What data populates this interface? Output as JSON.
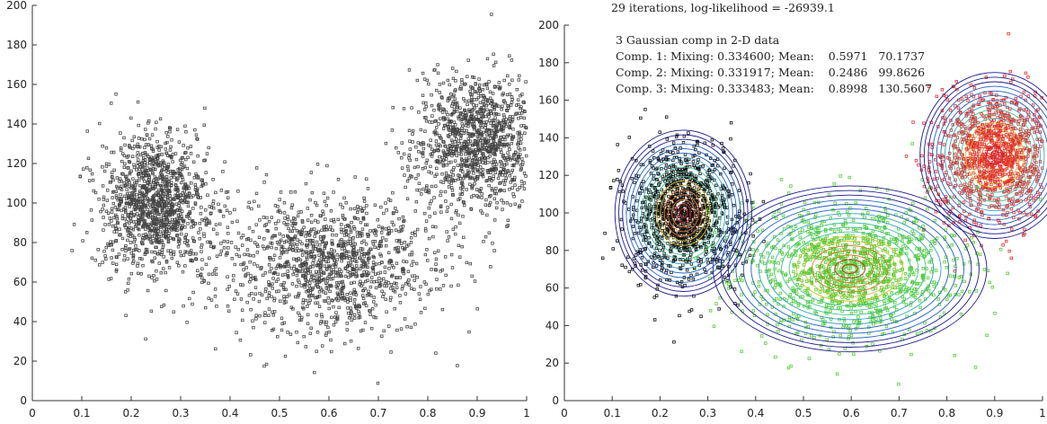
{
  "chart_data": [
    {
      "type": "scatter",
      "title": "",
      "xlabel": "",
      "ylabel": "",
      "xlim": [
        0,
        1
      ],
      "ylim": [
        0,
        200
      ],
      "x_ticks": [
        "0",
        "0.1",
        "0.2",
        "0.3",
        "0.4",
        "0.5",
        "0.6",
        "0.7",
        "0.8",
        "0.9",
        "1"
      ],
      "y_ticks": [
        "0",
        "20",
        "40",
        "60",
        "80",
        "100",
        "120",
        "140",
        "160",
        "180",
        "200"
      ],
      "grid": false,
      "marker": "square",
      "point_color": "#444444",
      "clusters": [
        {
          "mean": [
            0.2486,
            99.8626
          ],
          "sd": [
            0.055,
            17
          ],
          "weight": 0.331917
        },
        {
          "mean": [
            0.5971,
            70.1737
          ],
          "sd": [
            0.11,
            17
          ],
          "weight": 0.3346
        },
        {
          "mean": [
            0.8998,
            130.5607
          ],
          "sd": [
            0.06,
            17
          ],
          "weight": 0.333483
        }
      ]
    },
    {
      "type": "scatter",
      "title": "29 iterations, log-likelihood = -26939.1",
      "xlabel": "",
      "ylabel": "",
      "xlim": [
        0,
        1
      ],
      "ylim": [
        0,
        200
      ],
      "x_ticks": [
        "0",
        "0.1",
        "0.2",
        "0.3",
        "0.4",
        "0.5",
        "0.6",
        "0.7",
        "0.8",
        "0.9",
        "1"
      ],
      "y_ticks": [
        "0",
        "20",
        "40",
        "60",
        "80",
        "100",
        "120",
        "140",
        "160",
        "180",
        "200"
      ],
      "grid": false,
      "overlay": "gaussian mixture density contours",
      "annotations": [
        "3 Gaussian comp in 2-D data",
        "Comp. 1: Mixing: 0.334600; Mean:    0.5971   70.1737",
        "Comp. 2: Mixing: 0.331917; Mean:    0.2486   99.8626",
        "Comp. 3: Mixing: 0.333483; Mean:    0.8998   130.5607"
      ],
      "components": [
        {
          "mixing": 0.3346,
          "mean": [
            0.5971,
            70.1737
          ],
          "sd": [
            0.11,
            17
          ],
          "color": "#55cc33"
        },
        {
          "mixing": 0.331917,
          "mean": [
            0.2486,
            99.8626
          ],
          "sd": [
            0.055,
            17
          ],
          "color": "#111111"
        },
        {
          "mixing": 0.333483,
          "mean": [
            0.8998,
            130.5607
          ],
          "sd": [
            0.06,
            17
          ],
          "color": "#e03030"
        }
      ],
      "contour_colors": [
        "#1a1a8c",
        "#2060c0",
        "#30a0c8",
        "#40c0a0",
        "#d0c030",
        "#e07020",
        "#d02020"
      ]
    }
  ]
}
